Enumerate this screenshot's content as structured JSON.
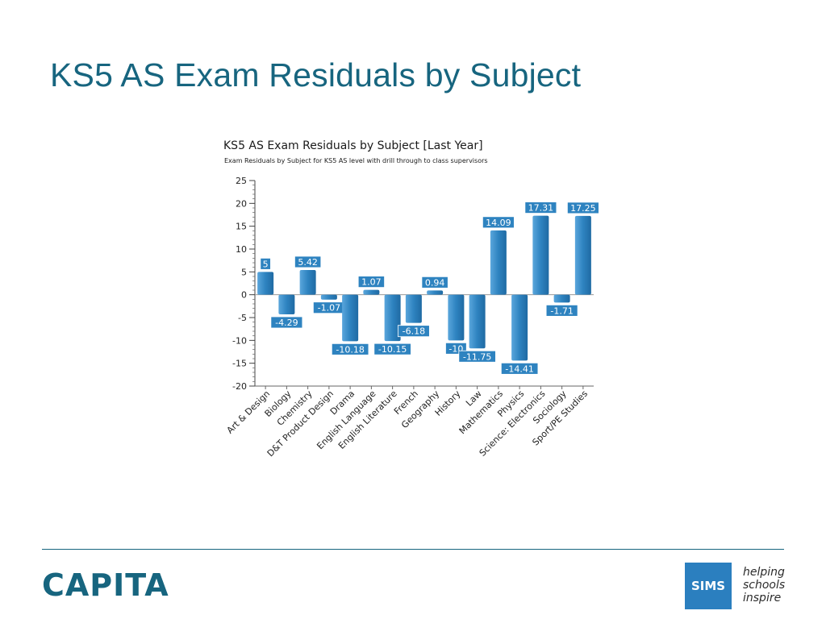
{
  "slide": {
    "title": "KS5 AS Exam Residuals by Subject"
  },
  "chart_data": {
    "type": "bar",
    "title": "KS5 AS Exam Residuals by Subject [Last Year]",
    "subtitle": "Exam Residuals by Subject for KS5 AS level with drill through to class supervisors",
    "xlabel": "",
    "ylabel": "",
    "ylim": [
      -20,
      25
    ],
    "yticks": [
      25,
      20,
      15,
      10,
      5,
      0,
      -5,
      -10,
      -15,
      -20
    ],
    "grid": false,
    "categories": [
      "Art & Design",
      "Biology",
      "Chemistry",
      "D&T Product Design",
      "Drama",
      "English Language",
      "English Literature",
      "French",
      "Geography",
      "History",
      "Law",
      "Mathematics",
      "Physics",
      "Science: Electronics",
      "Sociology",
      "Sport/PE Studies"
    ],
    "values": [
      5,
      -4.29,
      5.42,
      -1.07,
      -10.18,
      1.07,
      -10.15,
      -6.18,
      0.94,
      -10,
      -11.75,
      14.09,
      -14.41,
      17.31,
      -1.71,
      17.25
    ],
    "value_labels": [
      "5",
      "-4.29",
      "5.42",
      "-1.07",
      "-10.18",
      "1.07",
      "-10.15",
      "-6.18",
      "0.94",
      "-10",
      "-11.75",
      "14.09",
      "-14.41",
      "17.31",
      "-1.71",
      "17.25"
    ],
    "bar_color": "#2e83c0",
    "label_bg_color": "#2e83c0",
    "label_text_color": "#ffffff"
  },
  "footer": {
    "company_logo": "CAPITA",
    "product_logo": "SIMS",
    "tagline": [
      "helping",
      "schools",
      "inspire"
    ],
    "brand_color": "#17657f"
  }
}
